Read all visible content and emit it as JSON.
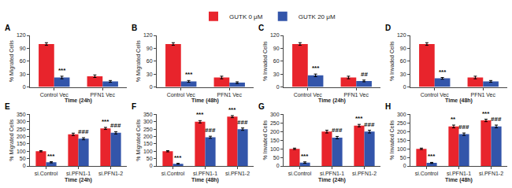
{
  "chart_data": [
    {
      "type": "bar",
      "title": "A",
      "xlabel": "Time (24h)",
      "ylabel": "% Migrated Cells",
      "categories": [
        "Control Vec",
        "PFN1 Vec"
      ],
      "series": [
        {
          "name": "GUTK 0 μM",
          "color": "#E8242C",
          "values": [
            100,
            25
          ],
          "errors": [
            3,
            3
          ]
        },
        {
          "name": "GUTK 20 μM",
          "color": "#3355AA",
          "values": [
            22,
            13
          ],
          "errors": [
            3,
            2
          ]
        }
      ],
      "annotations": [
        {
          "series": "GUTK 20 μM",
          "category": "Control Vec",
          "text": "***"
        }
      ],
      "ylim": [
        0,
        120
      ],
      "yticks": [
        0,
        30,
        60,
        90,
        120
      ],
      "grid": false,
      "legend": "top"
    },
    {
      "type": "bar",
      "title": "B",
      "xlabel": "Time (48h)",
      "ylabel": "% Migrated Cells",
      "categories": [
        "Control Vec",
        "PFN1 Vec"
      ],
      "series": [
        {
          "name": "GUTK 0 μM",
          "color": "#E8242C",
          "values": [
            100,
            22
          ],
          "errors": [
            3,
            3
          ]
        },
        {
          "name": "GUTK 20 μM",
          "color": "#3355AA",
          "values": [
            13,
            10
          ],
          "errors": [
            2,
            2
          ]
        }
      ],
      "annotations": [
        {
          "series": "GUTK 20 μM",
          "category": "Control Vec",
          "text": "***"
        }
      ],
      "ylim": [
        0,
        120
      ],
      "yticks": [
        0,
        30,
        60,
        90,
        120
      ],
      "grid": false,
      "legend": "top"
    },
    {
      "type": "bar",
      "title": "C",
      "xlabel": "Time (24h)",
      "ylabel": "% Invaded Cells",
      "categories": [
        "Control Vec",
        "PFN1 Vec"
      ],
      "series": [
        {
          "name": "GUTK 0 μM",
          "color": "#E8242C",
          "values": [
            100,
            22
          ],
          "errors": [
            3,
            3
          ]
        },
        {
          "name": "GUTK 20 μM",
          "color": "#3355AA",
          "values": [
            27,
            14
          ],
          "errors": [
            3,
            2
          ]
        }
      ],
      "annotations": [
        {
          "series": "GUTK 20 μM",
          "category": "Control Vec",
          "text": "***"
        },
        {
          "series": "GUTK 20 μM",
          "category": "PFN1 Vec",
          "text": "##"
        }
      ],
      "ylim": [
        0,
        120
      ],
      "yticks": [
        0,
        30,
        60,
        90,
        120
      ],
      "grid": false,
      "legend": "top"
    },
    {
      "type": "bar",
      "title": "D",
      "xlabel": "Time (48h)",
      "ylabel": "% Invaded Cells",
      "categories": [
        "Control Vec",
        "PFN1 Vec"
      ],
      "series": [
        {
          "name": "GUTK 0 μM",
          "color": "#E8242C",
          "values": [
            100,
            22
          ],
          "errors": [
            3,
            3
          ]
        },
        {
          "name": "GUTK 20 μM",
          "color": "#3355AA",
          "values": [
            20,
            13
          ],
          "errors": [
            2,
            2
          ]
        }
      ],
      "annotations": [
        {
          "series": "GUTK 20 μM",
          "category": "Control Vec",
          "text": "***"
        }
      ],
      "ylim": [
        0,
        120
      ],
      "yticks": [
        0,
        30,
        60,
        90,
        120
      ],
      "grid": false,
      "legend": "top"
    },
    {
      "type": "bar",
      "title": "E",
      "xlabel": "Time (24h)",
      "ylabel": "% Migrated Cells",
      "categories": [
        "si.Control",
        "si.PFN1-1",
        "si.PFN1-2"
      ],
      "series": [
        {
          "name": "GUTK 0 μM",
          "color": "#E8242C",
          "values": [
            100,
            215,
            255
          ],
          "errors": [
            4,
            8,
            7
          ]
        },
        {
          "name": "GUTK 20 μM",
          "color": "#3355AA",
          "values": [
            25,
            185,
            225
          ],
          "errors": [
            4,
            7,
            8
          ]
        }
      ],
      "annotations": [
        {
          "series": "GUTK 20 μM",
          "category": "si.Control",
          "text": "***"
        },
        {
          "series": "GUTK 20 μM",
          "category": "si.PFN1-1",
          "text": "###"
        },
        {
          "series": "GUTK 20 μM",
          "category": "si.PFN1-2",
          "text": "###"
        },
        {
          "series": "GUTK 0 μM",
          "category": "si.PFN1-2",
          "text": "***"
        }
      ],
      "ylim": [
        0,
        350
      ],
      "yticks": [
        0,
        50,
        100,
        150,
        200,
        250,
        300,
        350
      ],
      "grid": false,
      "legend": "top"
    },
    {
      "type": "bar",
      "title": "F",
      "xlabel": "Time (48h)",
      "ylabel": "% Migrated Cells",
      "categories": [
        "si.Control",
        "si.PFN1-1",
        "si.PFN1-2"
      ],
      "series": [
        {
          "name": "GUTK 0 μM",
          "color": "#E8242C",
          "values": [
            100,
            300,
            335
          ],
          "errors": [
            4,
            8,
            7
          ]
        },
        {
          "name": "GUTK 20 μM",
          "color": "#3355AA",
          "values": [
            15,
            195,
            250
          ],
          "errors": [
            3,
            7,
            8
          ]
        }
      ],
      "annotations": [
        {
          "series": "GUTK 20 μM",
          "category": "si.Control",
          "text": "***"
        },
        {
          "series": "GUTK 20 μM",
          "category": "si.PFN1-1",
          "text": "###"
        },
        {
          "series": "GUTK 20 μM",
          "category": "si.PFN1-2",
          "text": "###"
        },
        {
          "series": "GUTK 0 μM",
          "category": "si.PFN1-1",
          "text": "***"
        },
        {
          "series": "GUTK 0 μM",
          "category": "si.PFN1-2",
          "text": "***"
        }
      ],
      "ylim": [
        0,
        350
      ],
      "yticks": [
        0,
        50,
        100,
        150,
        200,
        250,
        300,
        350
      ],
      "grid": false,
      "legend": "top"
    },
    {
      "type": "bar",
      "title": "G",
      "xlabel": "Time (24h)",
      "ylabel": "% Invaded Cells",
      "categories": [
        "si.Control",
        "si.PFN1-1",
        "si.PFN1-2"
      ],
      "series": [
        {
          "name": "GUTK 0 μM",
          "color": "#E8242C",
          "values": [
            100,
            200,
            235
          ],
          "errors": [
            4,
            8,
            7
          ]
        },
        {
          "name": "GUTK 20 μM",
          "color": "#3355AA",
          "values": [
            20,
            165,
            200
          ],
          "errors": [
            4,
            7,
            8
          ]
        }
      ],
      "annotations": [
        {
          "series": "GUTK 20 μM",
          "category": "si.Control",
          "text": "***"
        },
        {
          "series": "GUTK 20 μM",
          "category": "si.PFN1-1",
          "text": "###"
        },
        {
          "series": "GUTK 20 μM",
          "category": "si.PFN1-2",
          "text": "###"
        },
        {
          "series": "GUTK 0 μM",
          "category": "si.PFN1-2",
          "text": "***"
        }
      ],
      "ylim": [
        0,
        300
      ],
      "yticks": [
        0,
        50,
        100,
        150,
        200,
        250,
        300
      ],
      "grid": false,
      "legend": "top"
    },
    {
      "type": "bar",
      "title": "H",
      "xlabel": "Time (48h)",
      "ylabel": "% Invaded Cells",
      "categories": [
        "si.Control",
        "si.PFN1-1",
        "si.PFN1-2"
      ],
      "series": [
        {
          "name": "GUTK 0 μM",
          "color": "#E8242C",
          "values": [
            100,
            230,
            265
          ],
          "errors": [
            4,
            8,
            7
          ]
        },
        {
          "name": "GUTK 20 μM",
          "color": "#3355AA",
          "values": [
            18,
            185,
            230
          ],
          "errors": [
            3,
            7,
            8
          ]
        }
      ],
      "annotations": [
        {
          "series": "GUTK 20 μM",
          "category": "si.Control",
          "text": "***"
        },
        {
          "series": "GUTK 20 μM",
          "category": "si.PFN1-1",
          "text": "###"
        },
        {
          "series": "GUTK 20 μM",
          "category": "si.PFN1-2",
          "text": "###"
        },
        {
          "series": "GUTK 0 μM",
          "category": "si.PFN1-1",
          "text": "**"
        },
        {
          "series": "GUTK 0 μM",
          "category": "si.PFN1-2",
          "text": "***"
        }
      ],
      "ylim": [
        0,
        300
      ],
      "yticks": [
        0,
        50,
        100,
        150,
        200,
        250,
        300
      ],
      "grid": false,
      "legend": "top"
    }
  ]
}
